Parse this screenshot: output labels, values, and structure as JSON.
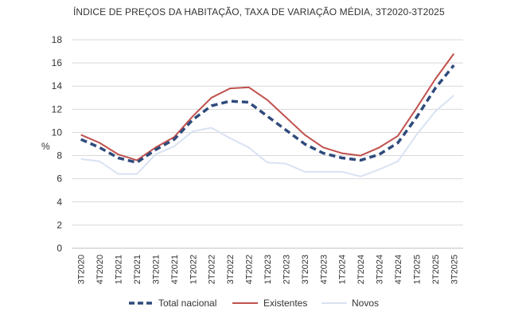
{
  "chart_data": {
    "type": "line",
    "title": "ÍNDICE DE PREÇOS DA HABITAÇÃO, TAXA DE VARIAÇÃO MÉDIA, 3T2020-3T2025",
    "ylabel": "%",
    "xlabel": "",
    "ylim": [
      0,
      18
    ],
    "yticks": [
      "0",
      "2",
      "4",
      "6",
      "8",
      "10",
      "12",
      "14",
      "16",
      "18"
    ],
    "categories": [
      "3T2020",
      "4T2020",
      "1T2021",
      "2T2021",
      "3T2021",
      "4T2021",
      "1T2022",
      "2T2022",
      "3T2022",
      "4T2022",
      "1T2023",
      "2T2023",
      "3T2023",
      "4T2023",
      "1T2024",
      "2T2024",
      "3T2024",
      "4T2024",
      "1T2025",
      "2T2025",
      "3T2025"
    ],
    "series": [
      {
        "name": "Total nacional",
        "color": "#2f4b7c",
        "style": "dashed",
        "values": [
          9.4,
          8.7,
          7.8,
          7.4,
          8.5,
          9.4,
          11.1,
          12.3,
          12.7,
          12.6,
          11.4,
          10.2,
          9.0,
          8.2,
          7.8,
          7.6,
          8.1,
          9.1,
          11.3,
          13.8,
          15.8
        ]
      },
      {
        "name": "Existentes",
        "color": "#c0504d",
        "style": "solid",
        "values": [
          9.8,
          9.1,
          8.1,
          7.6,
          8.7,
          9.6,
          11.4,
          13.0,
          13.8,
          13.9,
          12.8,
          11.3,
          9.8,
          8.7,
          8.2,
          8.0,
          8.7,
          9.7,
          12.1,
          14.6,
          16.8
        ]
      },
      {
        "name": "Novos",
        "color": "#d9e2f3",
        "style": "solid",
        "values": [
          7.7,
          7.5,
          6.4,
          6.4,
          8.1,
          8.8,
          10.1,
          10.4,
          9.5,
          8.7,
          7.4,
          7.3,
          6.6,
          6.6,
          6.6,
          6.2,
          6.8,
          7.5,
          9.8,
          11.8,
          13.2
        ]
      }
    ],
    "legend": [
      "Total nacional",
      "Existentes",
      "Novos"
    ],
    "legend_position": "bottom",
    "grid": true
  }
}
